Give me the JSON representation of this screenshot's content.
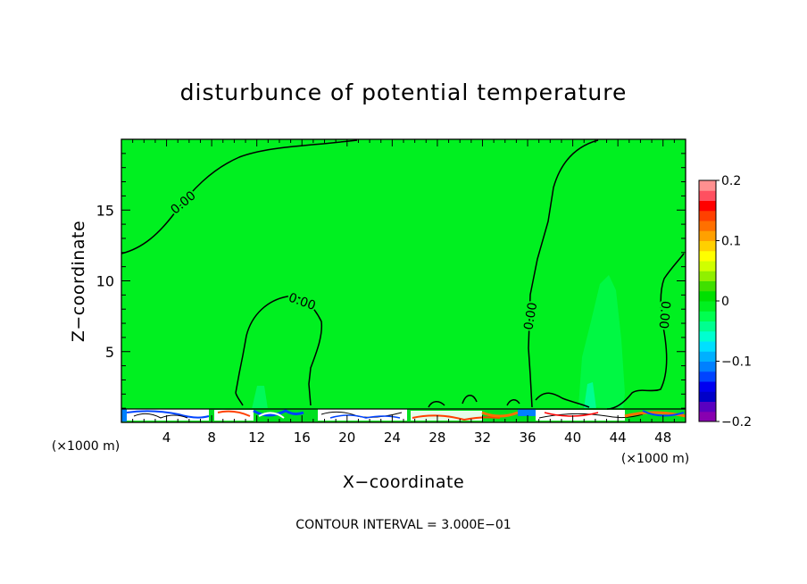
{
  "chart_data": {
    "type": "heatmap",
    "title": "disturbunce of potential temperature",
    "xlabel": "X−coordinate",
    "ylabel": "Z−coordinate",
    "x_unit_left": "(×1000 m)",
    "x_unit_right": "(×1000 m)",
    "x_ticks": [
      "4",
      "8",
      "12",
      "16",
      "20",
      "24",
      "28",
      "32",
      "36",
      "40",
      "44",
      "48"
    ],
    "x_tick_values": [
      4,
      8,
      12,
      16,
      20,
      24,
      28,
      32,
      36,
      40,
      44,
      48
    ],
    "y_ticks": [
      "5",
      "10",
      "15"
    ],
    "y_tick_values": [
      5,
      10,
      15
    ],
    "xlim": [
      0,
      50
    ],
    "ylim": [
      0,
      20
    ],
    "contour_labels": [
      {
        "text": "0.00",
        "x": 5.5,
        "y": 15.5,
        "rotation": -40
      },
      {
        "text": "0.00",
        "x": 16.0,
        "y": 8.5,
        "rotation": 20
      },
      {
        "text": "0.00",
        "x": 36.3,
        "y": 7.5,
        "rotation": -80
      },
      {
        "text": "0.00",
        "x": 48.1,
        "y": 7.6,
        "rotation": 95
      }
    ],
    "colorbar": {
      "ticks": [
        "0.2",
        "0.1",
        "0",
        "−0.1",
        "−0.2"
      ],
      "tick_values": [
        0.2,
        0.1,
        0,
        -0.1,
        -0.2
      ],
      "range": [
        -0.2,
        0.2
      ],
      "colors": [
        "#8800b0",
        "#5a00c0",
        "#0000c8",
        "#0000f0",
        "#0044ff",
        "#0080ff",
        "#00b0ff",
        "#00e0ff",
        "#00ffd0",
        "#00ff90",
        "#00ff50",
        "#00f020",
        "#00e000",
        "#40e000",
        "#90f000",
        "#d0ff00",
        "#ffff00",
        "#ffd000",
        "#ffa000",
        "#ff7000",
        "#ff4000",
        "#ff0000",
        "#ff5060",
        "#ff9090"
      ]
    },
    "background_color": "#00f020",
    "footer": "CONTOUR INTERVAL = 3.000E−01"
  }
}
